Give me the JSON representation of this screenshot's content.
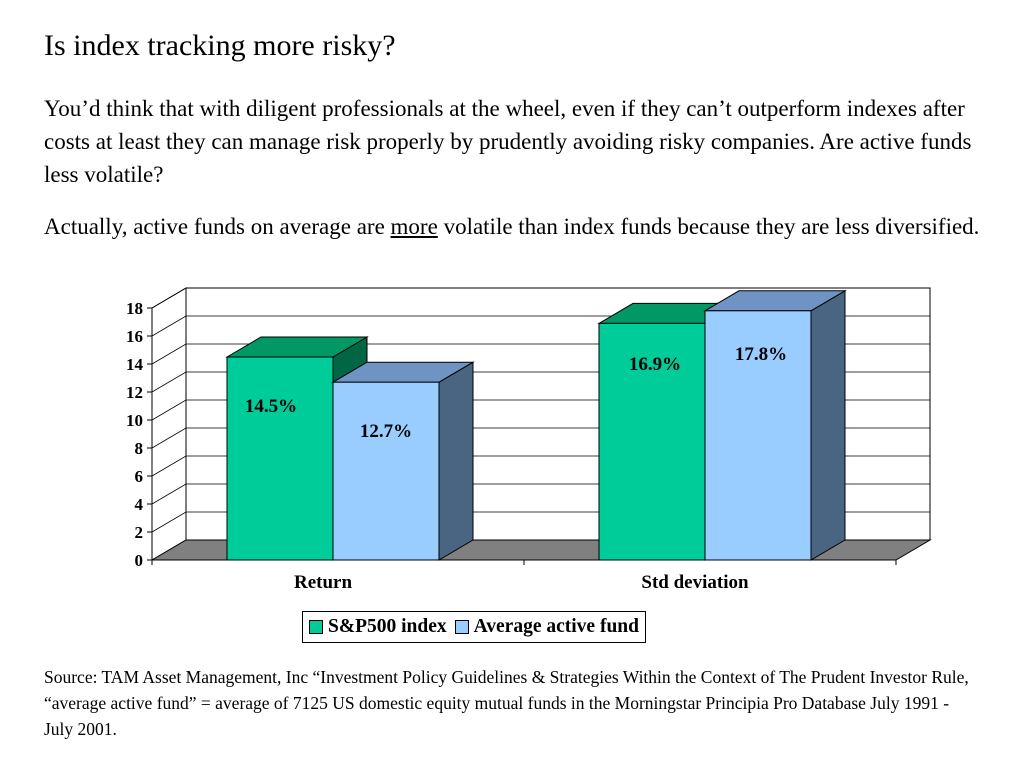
{
  "slide": {
    "title": "Is index tracking more risky?",
    "paragraph1": "You’d think that with diligent professionals at the wheel, even if they can’t outperform indexes after costs at least they can manage risk properly by prudently avoiding risky companies.  Are active funds less volatile?",
    "paragraph2_before": "Actually, active funds on average are ",
    "paragraph2_emph": "more",
    "paragraph2_after": " volatile than index funds because they are less diversified.",
    "source": "Source: TAM Asset Management, Inc “Investment Policy Guidelines & Strategies Within the Context of The Prudent Investor Rule, “average active fund” = average of 7125 US domestic equity mutual funds in the Morningstar Principia Pro Database July 1991 - July 2001."
  },
  "chart_data": {
    "type": "bar",
    "style": "3d-clustered-column",
    "categories": [
      "Return",
      "Std deviation"
    ],
    "series": [
      {
        "name": "S&P500 index",
        "values": [
          14.5,
          16.9
        ],
        "labels": [
          "14.5%",
          "16.9%"
        ],
        "color": "#00CC99"
      },
      {
        "name": "Average active fund",
        "values": [
          12.7,
          17.8
        ],
        "labels": [
          "12.7%",
          "17.8%"
        ],
        "color": "#99CCFF"
      }
    ],
    "ylim": [
      0,
      18
    ],
    "yticks": [
      "0",
      "2",
      "4",
      "6",
      "8",
      "10",
      "12",
      "14",
      "16",
      "18"
    ],
    "grid": true,
    "legend": "bottom",
    "colors": {
      "floor": "#808080",
      "wall": "#ffffff",
      "series1_side": "#006644",
      "series2_side": "#4A6582"
    }
  }
}
